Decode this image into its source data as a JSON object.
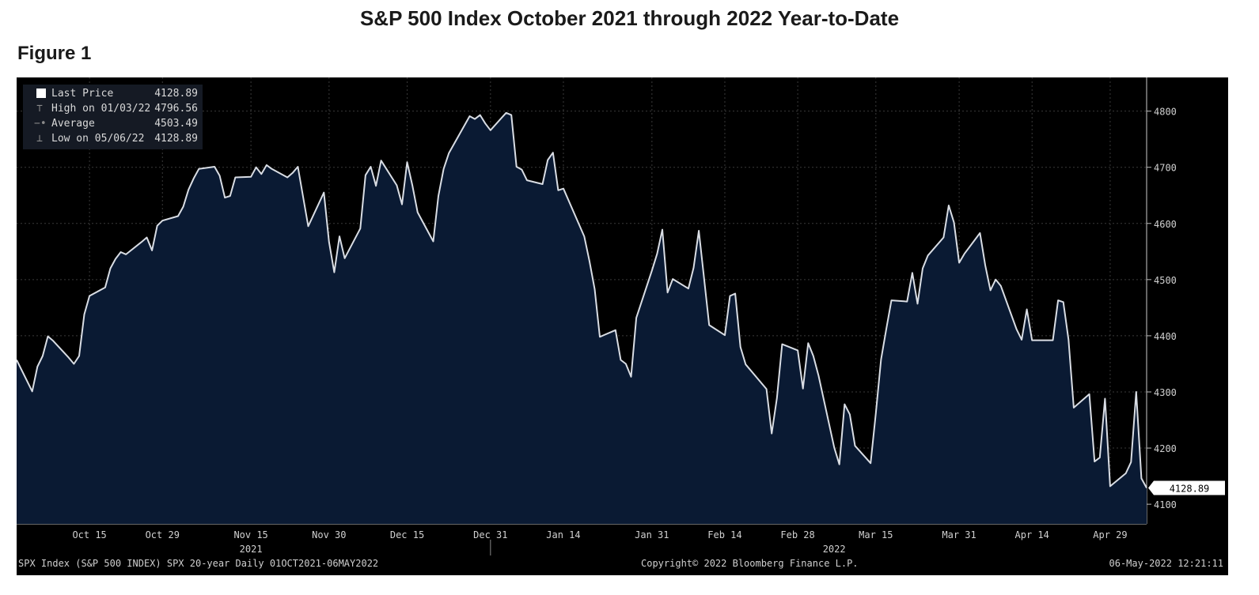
{
  "page": {
    "title": "S&P 500 Index October 2021 through 2022 Year-to-Date",
    "figure_label": "Figure 1"
  },
  "legend": [
    {
      "name": "Last Price",
      "value": "4128.89",
      "marker": "swatch"
    },
    {
      "name": "High on 01/03/22",
      "value": "4796.56",
      "marker": "high"
    },
    {
      "name": "Average",
      "value": "4503.49",
      "marker": "avg"
    },
    {
      "name": "Low on 05/06/22",
      "value": "4128.89",
      "marker": "low"
    }
  ],
  "footer": {
    "left": "SPX Index (S&P 500 INDEX) SPX 20-year  Daily 01OCT2021-06MAY2022",
    "center": "Copyright© 2022 Bloomberg Finance L.P.",
    "right": "06-May-2022 12:21:11"
  },
  "colors": {
    "background": "#000000",
    "area_fill": "#0a1a33",
    "line": "#d9dde4",
    "grid": "#3a3a3a"
  },
  "chart_data": {
    "type": "area",
    "title": "S&P 500 Index October 2021 through 2022 Year-to-Date",
    "xlabel": "",
    "ylabel": "",
    "ylim": [
      4065,
      4860
    ],
    "y_ticks": [
      4100,
      4200,
      4300,
      4400,
      4500,
      4600,
      4700,
      4800
    ],
    "x_ticks": [
      {
        "label": "Oct 15",
        "date": "2021-10-15"
      },
      {
        "label": "Oct 29",
        "date": "2021-10-29"
      },
      {
        "label": "Nov 15",
        "date": "2021-11-15"
      },
      {
        "label": "Nov 30",
        "date": "2021-11-30"
      },
      {
        "label": "Dec 15",
        "date": "2021-12-15"
      },
      {
        "label": "Dec 31",
        "date": "2021-12-31"
      },
      {
        "label": "Jan 14",
        "date": "2022-01-14"
      },
      {
        "label": "Jan 31",
        "date": "2022-01-31"
      },
      {
        "label": "Feb 14",
        "date": "2022-02-14"
      },
      {
        "label": "Feb 28",
        "date": "2022-02-28"
      },
      {
        "label": "Mar 15",
        "date": "2022-03-15"
      },
      {
        "label": "Mar 31",
        "date": "2022-03-31"
      },
      {
        "label": "Apr 14",
        "date": "2022-04-14"
      },
      {
        "label": "Apr 29",
        "date": "2022-04-29"
      }
    ],
    "year_labels": [
      {
        "label": "2021",
        "date": "2021-11-15"
      },
      {
        "label": "2022",
        "date": "2022-03-07"
      }
    ],
    "last_value_label": "4128.89",
    "grid": true,
    "legend_position": "top-left",
    "series": [
      {
        "name": "Last Price",
        "x": [
          "2021-10-01",
          "2021-10-04",
          "2021-10-05",
          "2021-10-06",
          "2021-10-07",
          "2021-10-08",
          "2021-10-11",
          "2021-10-12",
          "2021-10-13",
          "2021-10-14",
          "2021-10-15",
          "2021-10-18",
          "2021-10-19",
          "2021-10-20",
          "2021-10-21",
          "2021-10-22",
          "2021-10-25",
          "2021-10-26",
          "2021-10-27",
          "2021-10-28",
          "2021-10-29",
          "2021-11-01",
          "2021-11-02",
          "2021-11-03",
          "2021-11-04",
          "2021-11-05",
          "2021-11-08",
          "2021-11-09",
          "2021-11-10",
          "2021-11-11",
          "2021-11-12",
          "2021-11-15",
          "2021-11-16",
          "2021-11-17",
          "2021-11-18",
          "2021-11-19",
          "2021-11-22",
          "2021-11-23",
          "2021-11-24",
          "2021-11-26",
          "2021-11-29",
          "2021-11-30",
          "2021-12-01",
          "2021-12-02",
          "2021-12-03",
          "2021-12-06",
          "2021-12-07",
          "2021-12-08",
          "2021-12-09",
          "2021-12-10",
          "2021-12-13",
          "2021-12-14",
          "2021-12-15",
          "2021-12-16",
          "2021-12-17",
          "2021-12-20",
          "2021-12-21",
          "2021-12-22",
          "2021-12-23",
          "2021-12-27",
          "2021-12-28",
          "2021-12-29",
          "2021-12-30",
          "2021-12-31",
          "2022-01-03",
          "2022-01-04",
          "2022-01-05",
          "2022-01-06",
          "2022-01-07",
          "2022-01-10",
          "2022-01-11",
          "2022-01-12",
          "2022-01-13",
          "2022-01-14",
          "2022-01-18",
          "2022-01-19",
          "2022-01-20",
          "2022-01-21",
          "2022-01-24",
          "2022-01-25",
          "2022-01-26",
          "2022-01-27",
          "2022-01-28",
          "2022-01-31",
          "2022-02-01",
          "2022-02-02",
          "2022-02-03",
          "2022-02-04",
          "2022-02-07",
          "2022-02-08",
          "2022-02-09",
          "2022-02-10",
          "2022-02-11",
          "2022-02-14",
          "2022-02-15",
          "2022-02-16",
          "2022-02-17",
          "2022-02-18",
          "2022-02-22",
          "2022-02-23",
          "2022-02-24",
          "2022-02-25",
          "2022-02-28",
          "2022-03-01",
          "2022-03-02",
          "2022-03-03",
          "2022-03-04",
          "2022-03-07",
          "2022-03-08",
          "2022-03-09",
          "2022-03-10",
          "2022-03-11",
          "2022-03-14",
          "2022-03-15",
          "2022-03-16",
          "2022-03-17",
          "2022-03-18",
          "2022-03-21",
          "2022-03-22",
          "2022-03-23",
          "2022-03-24",
          "2022-03-25",
          "2022-03-28",
          "2022-03-29",
          "2022-03-30",
          "2022-03-31",
          "2022-04-01",
          "2022-04-04",
          "2022-04-05",
          "2022-04-06",
          "2022-04-07",
          "2022-04-08",
          "2022-04-11",
          "2022-04-12",
          "2022-04-13",
          "2022-04-14",
          "2022-04-18",
          "2022-04-19",
          "2022-04-20",
          "2022-04-21",
          "2022-04-22",
          "2022-04-25",
          "2022-04-26",
          "2022-04-27",
          "2022-04-28",
          "2022-04-29",
          "2022-05-02",
          "2022-05-03",
          "2022-05-04",
          "2022-05-05",
          "2022-05-06"
        ],
        "values": [
          4357,
          4301,
          4345,
          4364,
          4399,
          4391,
          4361,
          4350,
          4364,
          4438,
          4471,
          4486,
          4520,
          4537,
          4549,
          4545,
          4567,
          4575,
          4552,
          4596,
          4605,
          4613,
          4630,
          4660,
          4680,
          4697,
          4701,
          4685,
          4646,
          4649,
          4682,
          4683,
          4700,
          4688,
          4704,
          4697,
          4682,
          4690,
          4701,
          4595,
          4655,
          4567,
          4513,
          4577,
          4538,
          4591,
          4686,
          4701,
          4667,
          4712,
          4668,
          4634,
          4709,
          4668,
          4620,
          4568,
          4649,
          4697,
          4725,
          4791,
          4786,
          4793,
          4778,
          4766,
          4797,
          4793,
          4701,
          4696,
          4677,
          4670,
          4713,
          4726,
          4659,
          4662,
          4577,
          4533,
          4483,
          4398,
          4410,
          4357,
          4350,
          4327,
          4432,
          4516,
          4546,
          4589,
          4477,
          4501,
          4484,
          4521,
          4587,
          4504,
          4419,
          4401,
          4471,
          4475,
          4380,
          4349,
          4305,
          4226,
          4289,
          4385,
          4374,
          4306,
          4387,
          4364,
          4329,
          4201,
          4171,
          4278,
          4260,
          4204,
          4173,
          4262,
          4358,
          4412,
          4463,
          4461,
          4512,
          4457,
          4520,
          4543,
          4575,
          4632,
          4602,
          4530,
          4546,
          4583,
          4526,
          4481,
          4500,
          4489,
          4412,
          4393,
          4447,
          4392,
          4392,
          4463,
          4460,
          4393,
          4272,
          4296,
          4176,
          4183,
          4288,
          4132,
          4155,
          4175,
          4300,
          4146,
          4129
        ]
      }
    ]
  }
}
